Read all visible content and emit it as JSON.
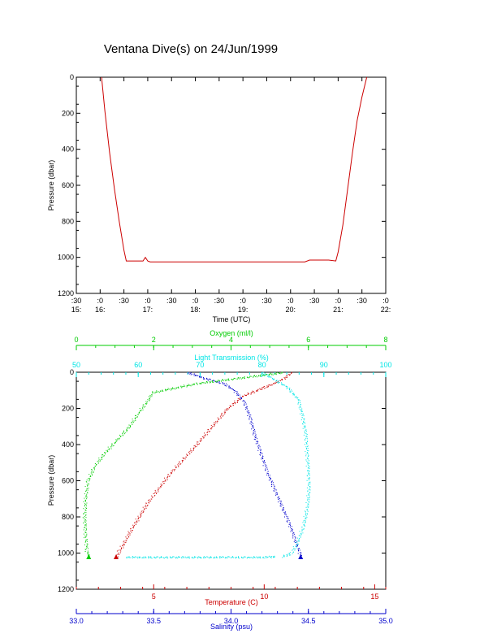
{
  "title": "Ventana Dive(s) on 24/Jun/1999",
  "colors": {
    "axis": "#000000",
    "temperature": "#cc0000",
    "salinity": "#0000cc",
    "oxygen": "#00cc00",
    "light": "#00e5e5"
  },
  "chart_data": [
    {
      "type": "line",
      "ylabel": "Pressure (dbar)",
      "xlabel": "Time (UTC)",
      "ylim": [
        1200,
        0
      ],
      "y_ticks": [
        0,
        200,
        400,
        600,
        800,
        1000,
        1200
      ],
      "x_ticks": [
        {
          "min": ":30",
          "hr": "15:"
        },
        {
          "min": ":0",
          "hr": "16:"
        },
        {
          "min": ":30",
          "hr": ""
        },
        {
          "min": ":0",
          "hr": "17:"
        },
        {
          "min": ":30",
          "hr": ""
        },
        {
          "min": ":0",
          "hr": "18:"
        },
        {
          "min": ":30",
          "hr": ""
        },
        {
          "min": ":0",
          "hr": "19:"
        },
        {
          "min": ":30",
          "hr": ""
        },
        {
          "min": ":0",
          "hr": "20:"
        },
        {
          "min": ":30",
          "hr": ""
        },
        {
          "min": ":0",
          "hr": "21:"
        },
        {
          "min": ":30",
          "hr": ""
        },
        {
          "min": ":0",
          "hr": "22:"
        }
      ],
      "series": [
        {
          "x_hours": [
            16.03,
            16.1,
            16.2,
            16.3,
            16.4,
            16.5,
            16.55,
            16.6,
            16.9,
            16.95,
            17.0,
            17.05,
            17.5,
            18.5,
            19.5,
            20.3,
            20.4,
            20.8,
            20.95,
            21.0,
            21.1,
            21.2,
            21.3,
            21.4,
            21.5,
            21.6
          ],
          "pressure": [
            0,
            190,
            420,
            620,
            800,
            960,
            1020,
            1020,
            1020,
            1000,
            1020,
            1025,
            1025,
            1025,
            1025,
            1025,
            1015,
            1015,
            1020,
            970,
            820,
            620,
            420,
            240,
            110,
            0
          ]
        }
      ]
    },
    {
      "type": "scatter",
      "ylabel": "Pressure (dbar)",
      "ylim": [
        1200,
        0
      ],
      "y_ticks": [
        0,
        200,
        400,
        600,
        800,
        1000,
        1200
      ],
      "axes": {
        "oxygen": {
          "label": "Oxygen (ml/l)",
          "range": [
            0,
            8
          ],
          "ticks": [
            "0",
            "2",
            "4",
            "6",
            "8"
          ]
        },
        "light": {
          "label": "Light Transmission (%)",
          "range": [
            50,
            100
          ],
          "ticks": [
            "50",
            "60",
            "70",
            "80",
            "90",
            "100"
          ]
        },
        "temperature": {
          "label": "Temperature (C)",
          "range": [
            1.5,
            15.5
          ],
          "ticks": [
            "5",
            "10",
            "15"
          ]
        },
        "salinity": {
          "label": "Salinity (psu)",
          "range": [
            33.0,
            35.0
          ],
          "ticks": [
            "33.0",
            "33.5",
            "34.0",
            "34.5",
            "35.0"
          ]
        }
      },
      "series": [
        {
          "name": "Temperature",
          "x": [
            11.2,
            10.9,
            10.4,
            9.8,
            9.0,
            8.3,
            7.6,
            6.9,
            6.3,
            5.7,
            5.2,
            4.7,
            4.3,
            3.9,
            3.6,
            3.4,
            3.3
          ],
          "pressure": [
            0,
            30,
            60,
            90,
            130,
            200,
            300,
            400,
            480,
            560,
            640,
            720,
            800,
            880,
            950,
            990,
            1020
          ]
        },
        {
          "name": "Salinity",
          "x": [
            33.72,
            33.82,
            33.95,
            34.02,
            34.08,
            34.12,
            34.15,
            34.19,
            34.23,
            34.28,
            34.33,
            34.38,
            34.42,
            34.45
          ],
          "pressure": [
            0,
            30,
            60,
            100,
            160,
            250,
            350,
            450,
            550,
            650,
            750,
            850,
            950,
            1020
          ]
        },
        {
          "name": "Oxygen",
          "x": [
            5.3,
            3.1,
            1.95,
            1.85,
            1.6,
            1.35,
            1.0,
            0.7,
            0.45,
            0.28,
            0.22,
            0.2,
            0.22,
            0.26,
            0.32
          ],
          "pressure": [
            0,
            60,
            110,
            150,
            220,
            300,
            380,
            450,
            520,
            600,
            700,
            800,
            900,
            990,
            1020
          ]
        },
        {
          "name": "Light Transmission",
          "x": [
            80.0,
            84.0,
            85.8,
            86.5,
            87.0,
            87.2,
            87.4,
            87.5,
            87.2,
            86.6,
            85.5,
            84.6,
            83.0
          ],
          "pressure": [
            0,
            80,
            150,
            250,
            350,
            450,
            550,
            650,
            750,
            850,
            950,
            1000,
            1020
          ]
        },
        {
          "name": "Light Transmission (bottom)",
          "x": [
            58.0,
            62.0,
            66.0,
            70.0,
            74.0,
            78.0,
            80.5,
            81.5,
            82.0
          ],
          "pressure": [
            1020,
            1021,
            1020,
            1021,
            1020,
            1021,
            1020,
            1018,
            1016
          ]
        }
      ]
    }
  ]
}
